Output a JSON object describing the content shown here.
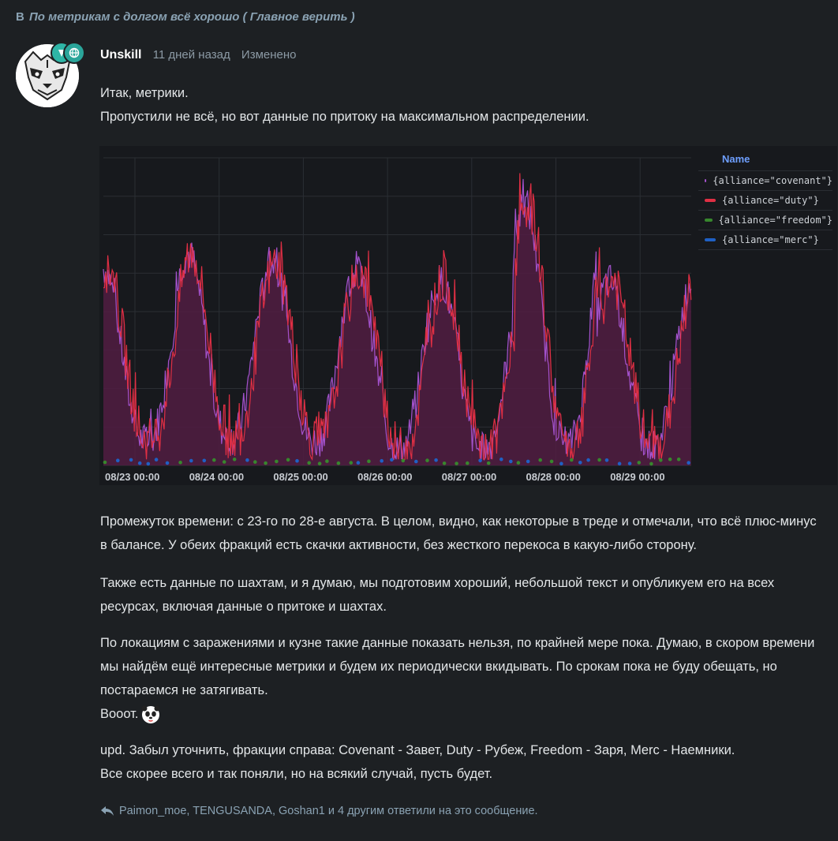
{
  "topic": {
    "prefix": "В",
    "title": "По метрикам с долгом всё хорошо ( Главное верить )"
  },
  "post": {
    "author": "Unskill",
    "time": "11 дней назад",
    "edited": "Изменено",
    "intro_line1": "Итак, метрики.",
    "intro_line2": "Пропустили не всё, но вот данные по притоку на максимальном распределении.",
    "para1": "Промежуток времени: с 23-го по 28-е августа. В целом, видно, как некоторые в треде и отмечали, что всё плюс-минус в балансе. У обеих фракций есть скачки активности, без жесткого перекоса в какую-либо сторону.",
    "para2": "Также есть данные по шахтам, и я думаю, мы подготовим хороший, небольшой текст и опубликуем его на всех ресурсах, включая данные о притоке и шахтах.",
    "para3": "По локациям с заражениями и кузне такие данные показать нельзя, по крайней мере пока. Думаю, в скором времени мы найдём ещё интересные метрики и будем их периодически вкидывать. По срокам пока не буду обещать, но постараемся не затягивать.",
    "para3_end": "Вооот.",
    "upd_line1": "upd. Забыл уточнить, фракции справа: Covenant - Завет, Duty - Рубеж, Freedom - Заря, Merc - Наемники.",
    "upd_line2": "Все скорее всего и так поняли, но на всякий случай, пусть будет.",
    "replies": "Paimon_moe, TENGUSANDA, Goshan1 и 4 другим ответили на это сообщение."
  },
  "chart_data": {
    "type": "line",
    "x_tick_labels": [
      "08/23 00:00",
      "08/24 00:00",
      "08/25 00:00",
      "08/26 00:00",
      "08/27 00:00",
      "08/28 00:00",
      "08/29 00:00"
    ],
    "legend_title": "Name",
    "legend_placement": "right",
    "grid": true,
    "series": [
      {
        "name": "{alliance=\"covenant\"}",
        "color": "#a352cc",
        "style": "high daily-periodic, area fill"
      },
      {
        "name": "{alliance=\"duty\"}",
        "color": "#e02f44",
        "style": "high daily-periodic, area fill"
      },
      {
        "name": "{alliance=\"freedom\"}",
        "color": "#37872d",
        "style": "near zero points"
      },
      {
        "name": "{alliance=\"merc\"}",
        "color": "#1f60c4",
        "style": "near zero points"
      }
    ],
    "daily_peaks_relative": [
      0.75,
      0.64,
      0.69,
      0.66,
      0.63,
      0.6,
      0.85,
      0.6
    ],
    "daily_troughs_relative": [
      0.08,
      0.09,
      0.08,
      0.05,
      0.05,
      0.07,
      0.06
    ]
  }
}
